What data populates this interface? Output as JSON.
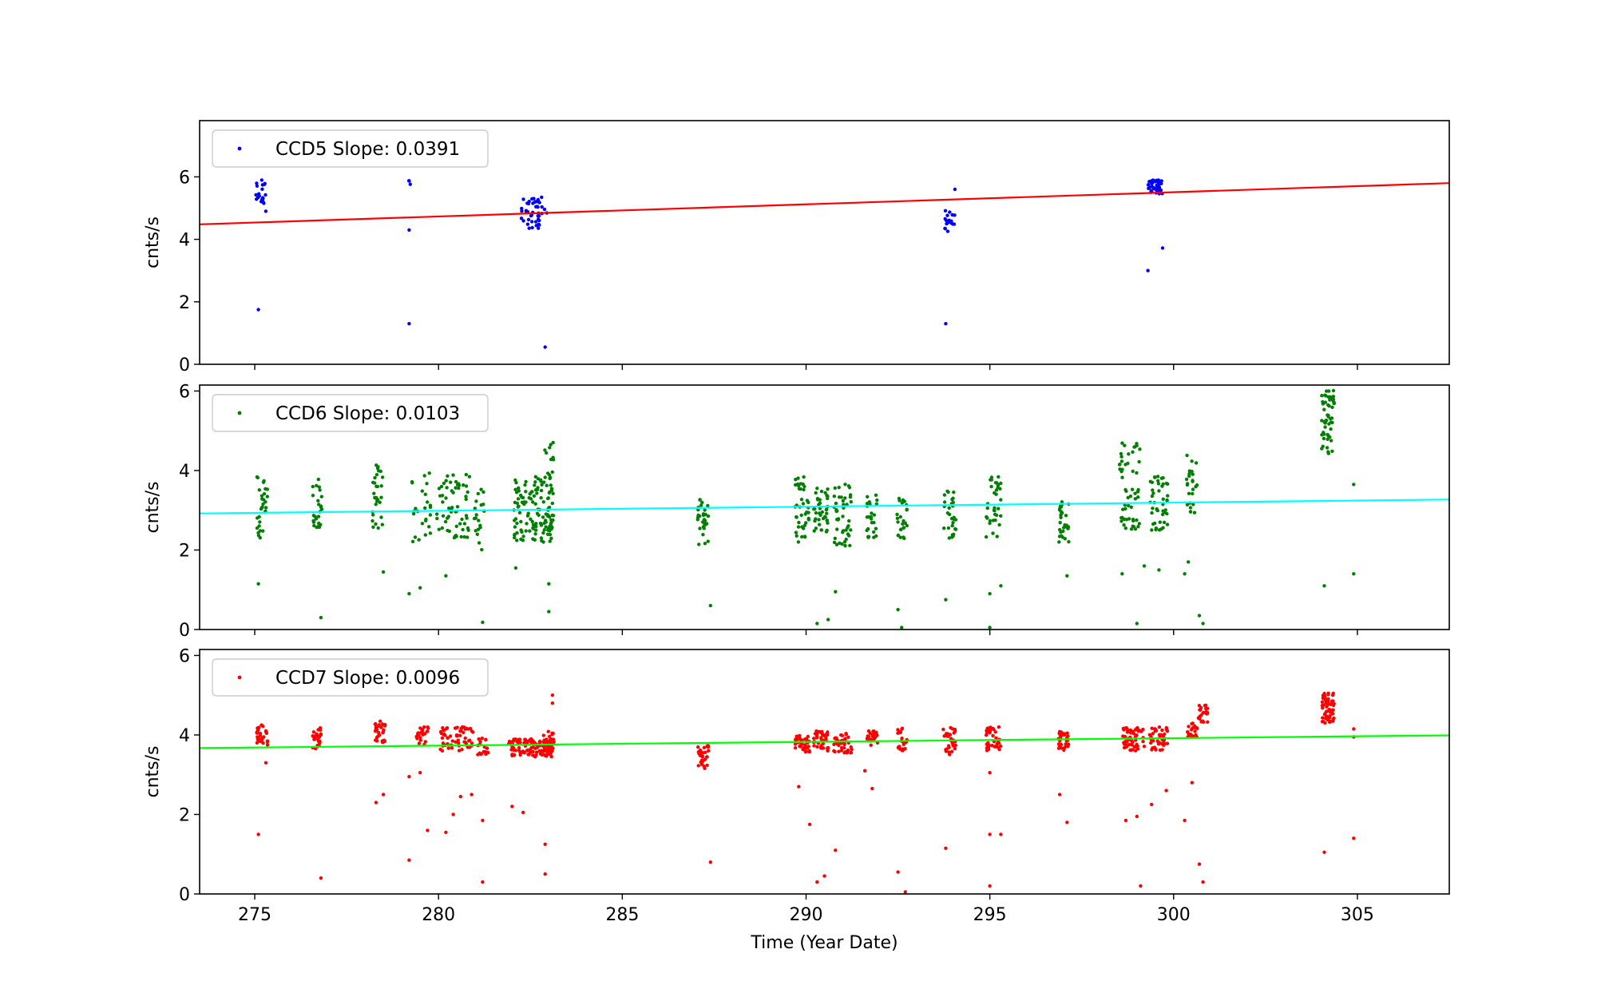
{
  "chart_data": [
    {
      "type": "scatter",
      "ylabel": "cnts/s",
      "ylim": [
        0,
        7.8
      ],
      "yticks": [
        0,
        2,
        4,
        6
      ],
      "xlim": [
        273.5,
        307.5
      ],
      "xticks": [
        275,
        280,
        285,
        290,
        295,
        300,
        305
      ],
      "grid": false,
      "legend_position": "top-left",
      "series": [
        {
          "name": "CCD5 Slope: 0.0391",
          "color": "#0000ff",
          "clusters": [
            {
              "x": 275.15,
              "w": 0.3,
              "n": 20,
              "lo": 5.0,
              "hi": 5.9
            },
            {
              "x": 279.2,
              "w": 0.1,
              "n": 3,
              "lo": 5.7,
              "hi": 5.9
            },
            {
              "x": 282.6,
              "w": 0.7,
              "n": 45,
              "lo": 4.35,
              "hi": 5.35
            },
            {
              "x": 293.9,
              "w": 0.3,
              "n": 18,
              "lo": 4.25,
              "hi": 5.0
            },
            {
              "x": 299.5,
              "w": 0.4,
              "n": 45,
              "lo": 5.45,
              "hi": 5.9
            }
          ],
          "points": [
            [
              275.1,
              1.75
            ],
            [
              279.2,
              4.3
            ],
            [
              279.2,
              1.3
            ],
            [
              282.9,
              0.55
            ],
            [
              294.05,
              5.6
            ],
            [
              293.8,
              1.3
            ],
            [
              299.3,
              3.0
            ],
            [
              299.7,
              3.72
            ],
            [
              275.3,
              4.9
            ]
          ]
        }
      ],
      "fit": {
        "color": "#ff0000",
        "y_at_xmin": 4.48,
        "y_at_xmax": 5.8
      }
    },
    {
      "type": "scatter",
      "ylabel": "cnts/s",
      "ylim": [
        0,
        6.15
      ],
      "yticks": [
        0,
        2,
        4,
        6
      ],
      "xlim": [
        273.5,
        307.5
      ],
      "xticks": [
        275,
        280,
        285,
        290,
        295,
        300,
        305
      ],
      "grid": false,
      "legend_position": "top-left",
      "series": [
        {
          "name": "CCD6 Slope: 0.0103",
          "color": "#008000",
          "clusters": [
            {
              "x": 275.2,
              "w": 0.3,
              "n": 30,
              "lo": 2.3,
              "hi": 3.85
            },
            {
              "x": 276.7,
              "w": 0.25,
              "n": 25,
              "lo": 2.5,
              "hi": 3.8
            },
            {
              "x": 278.35,
              "w": 0.3,
              "n": 30,
              "lo": 2.5,
              "hi": 4.2
            },
            {
              "x": 279.5,
              "w": 0.6,
              "n": 25,
              "lo": 2.2,
              "hi": 4.0
            },
            {
              "x": 280.4,
              "w": 0.9,
              "n": 60,
              "lo": 2.3,
              "hi": 3.9
            },
            {
              "x": 281.1,
              "w": 0.3,
              "n": 20,
              "lo": 1.9,
              "hi": 3.6
            },
            {
              "x": 282.6,
              "w": 1.1,
              "n": 120,
              "lo": 2.2,
              "hi": 3.9
            },
            {
              "x": 283.0,
              "w": 0.25,
              "n": 25,
              "lo": 2.4,
              "hi": 4.8
            },
            {
              "x": 287.2,
              "w": 0.3,
              "n": 30,
              "lo": 2.1,
              "hi": 3.3
            },
            {
              "x": 289.9,
              "w": 0.4,
              "n": 40,
              "lo": 2.2,
              "hi": 3.9
            },
            {
              "x": 290.4,
              "w": 0.4,
              "n": 40,
              "lo": 2.4,
              "hi": 3.6
            },
            {
              "x": 291.0,
              "w": 0.5,
              "n": 45,
              "lo": 2.1,
              "hi": 3.7
            },
            {
              "x": 291.8,
              "w": 0.3,
              "n": 25,
              "lo": 2.3,
              "hi": 3.4
            },
            {
              "x": 292.6,
              "w": 0.3,
              "n": 25,
              "lo": 2.2,
              "hi": 3.3
            },
            {
              "x": 293.9,
              "w": 0.35,
              "n": 30,
              "lo": 2.3,
              "hi": 3.6
            },
            {
              "x": 295.1,
              "w": 0.4,
              "n": 35,
              "lo": 2.3,
              "hi": 4.0
            },
            {
              "x": 297.0,
              "w": 0.3,
              "n": 30,
              "lo": 2.2,
              "hi": 3.3
            },
            {
              "x": 298.8,
              "w": 0.6,
              "n": 55,
              "lo": 2.5,
              "hi": 4.7
            },
            {
              "x": 299.6,
              "w": 0.5,
              "n": 45,
              "lo": 2.5,
              "hi": 3.9
            },
            {
              "x": 300.5,
              "w": 0.3,
              "n": 25,
              "lo": 2.9,
              "hi": 4.4
            },
            {
              "x": 304.2,
              "w": 0.35,
              "n": 55,
              "lo": 4.4,
              "hi": 6.1
            }
          ],
          "points": [
            [
              275.1,
              1.15
            ],
            [
              276.8,
              0.3
            ],
            [
              278.5,
              1.45
            ],
            [
              279.2,
              0.9
            ],
            [
              279.5,
              1.05
            ],
            [
              280.2,
              1.35
            ],
            [
              281.2,
              0.18
            ],
            [
              282.1,
              1.55
            ],
            [
              283.0,
              1.15
            ],
            [
              283.0,
              0.45
            ],
            [
              287.4,
              0.6
            ],
            [
              290.3,
              0.15
            ],
            [
              290.6,
              0.25
            ],
            [
              290.8,
              0.95
            ],
            [
              292.5,
              0.5
            ],
            [
              293.8,
              0.75
            ],
            [
              295.0,
              0.9
            ],
            [
              295.3,
              1.1
            ],
            [
              295.0,
              0.05
            ],
            [
              297.1,
              1.35
            ],
            [
              299.0,
              0.15
            ],
            [
              298.6,
              1.4
            ],
            [
              299.2,
              1.6
            ],
            [
              299.6,
              1.5
            ],
            [
              300.4,
              1.7
            ],
            [
              300.7,
              0.35
            ],
            [
              300.8,
              0.15
            ],
            [
              300.3,
              1.4
            ],
            [
              304.1,
              1.1
            ],
            [
              304.9,
              1.4
            ],
            [
              304.9,
              3.65
            ],
            [
              292.6,
              0.05
            ]
          ]
        }
      ],
      "fit": {
        "color": "#00ffff",
        "y_at_xmin": 2.92,
        "y_at_xmax": 3.27
      }
    },
    {
      "type": "scatter",
      "xlabel": "Time (Year Date)",
      "ylabel": "cnts/s",
      "ylim": [
        0,
        6.15
      ],
      "yticks": [
        0,
        2,
        4,
        6
      ],
      "xlim": [
        273.5,
        307.5
      ],
      "xticks": [
        275,
        280,
        285,
        290,
        295,
        300,
        305
      ],
      "grid": false,
      "legend_position": "top-left",
      "series": [
        {
          "name": "CCD7 Slope: 0.0096",
          "color": "#ff0000",
          "clusters": [
            {
              "x": 275.2,
              "w": 0.3,
              "n": 30,
              "lo": 3.7,
              "hi": 4.25
            },
            {
              "x": 276.7,
              "w": 0.25,
              "n": 25,
              "lo": 3.6,
              "hi": 4.2
            },
            {
              "x": 278.4,
              "w": 0.3,
              "n": 30,
              "lo": 3.8,
              "hi": 4.35
            },
            {
              "x": 279.6,
              "w": 0.4,
              "n": 25,
              "lo": 3.75,
              "hi": 4.2
            },
            {
              "x": 280.5,
              "w": 0.9,
              "n": 60,
              "lo": 3.6,
              "hi": 4.2
            },
            {
              "x": 281.2,
              "w": 0.3,
              "n": 20,
              "lo": 3.5,
              "hi": 4.0
            },
            {
              "x": 282.5,
              "w": 1.2,
              "n": 120,
              "lo": 3.45,
              "hi": 3.9
            },
            {
              "x": 283.0,
              "w": 0.3,
              "n": 25,
              "lo": 3.5,
              "hi": 4.1
            },
            {
              "x": 287.2,
              "w": 0.3,
              "n": 30,
              "lo": 3.15,
              "hi": 3.75
            },
            {
              "x": 289.9,
              "w": 0.4,
              "n": 40,
              "lo": 3.55,
              "hi": 4.0
            },
            {
              "x": 290.4,
              "w": 0.4,
              "n": 40,
              "lo": 3.6,
              "hi": 4.1
            },
            {
              "x": 291.0,
              "w": 0.5,
              "n": 45,
              "lo": 3.55,
              "hi": 4.05
            },
            {
              "x": 291.8,
              "w": 0.3,
              "n": 25,
              "lo": 3.7,
              "hi": 4.1
            },
            {
              "x": 292.6,
              "w": 0.3,
              "n": 25,
              "lo": 3.6,
              "hi": 4.2
            },
            {
              "x": 293.9,
              "w": 0.35,
              "n": 30,
              "lo": 3.5,
              "hi": 4.2
            },
            {
              "x": 295.1,
              "w": 0.4,
              "n": 35,
              "lo": 3.6,
              "hi": 4.2
            },
            {
              "x": 297.0,
              "w": 0.3,
              "n": 30,
              "lo": 3.6,
              "hi": 4.1
            },
            {
              "x": 298.9,
              "w": 0.6,
              "n": 55,
              "lo": 3.6,
              "hi": 4.2
            },
            {
              "x": 299.6,
              "w": 0.5,
              "n": 45,
              "lo": 3.6,
              "hi": 4.2
            },
            {
              "x": 300.5,
              "w": 0.3,
              "n": 25,
              "lo": 3.9,
              "hi": 4.3
            },
            {
              "x": 300.8,
              "w": 0.25,
              "n": 25,
              "lo": 4.3,
              "hi": 4.75
            },
            {
              "x": 304.2,
              "w": 0.35,
              "n": 55,
              "lo": 4.3,
              "hi": 5.05
            }
          ],
          "points": [
            [
              275.1,
              1.5
            ],
            [
              275.3,
              3.3
            ],
            [
              276.8,
              0.4
            ],
            [
              278.3,
              2.3
            ],
            [
              278.5,
              2.5
            ],
            [
              279.2,
              0.85
            ],
            [
              279.2,
              2.95
            ],
            [
              279.5,
              3.05
            ],
            [
              279.7,
              1.6
            ],
            [
              280.2,
              1.55
            ],
            [
              280.4,
              2.0
            ],
            [
              280.6,
              2.45
            ],
            [
              280.9,
              2.5
            ],
            [
              281.2,
              1.85
            ],
            [
              281.2,
              0.3
            ],
            [
              282.0,
              2.2
            ],
            [
              282.3,
              2.05
            ],
            [
              282.9,
              1.25
            ],
            [
              282.9,
              0.5
            ],
            [
              283.1,
              5.0
            ],
            [
              283.1,
              4.8
            ],
            [
              287.4,
              0.8
            ],
            [
              289.8,
              2.7
            ],
            [
              290.1,
              1.75
            ],
            [
              290.3,
              0.3
            ],
            [
              290.5,
              0.45
            ],
            [
              290.8,
              1.1
            ],
            [
              291.6,
              3.1
            ],
            [
              291.8,
              2.65
            ],
            [
              292.5,
              0.55
            ],
            [
              292.7,
              0.05
            ],
            [
              293.8,
              1.15
            ],
            [
              295.0,
              3.05
            ],
            [
              295.0,
              1.5
            ],
            [
              295.3,
              1.5
            ],
            [
              295.0,
              0.2
            ],
            [
              296.9,
              2.5
            ],
            [
              297.1,
              1.8
            ],
            [
              298.7,
              1.85
            ],
            [
              299.0,
              1.95
            ],
            [
              299.1,
              0.2
            ],
            [
              299.4,
              2.25
            ],
            [
              299.8,
              2.6
            ],
            [
              300.3,
              1.85
            ],
            [
              300.5,
              2.8
            ],
            [
              300.7,
              0.75
            ],
            [
              300.8,
              0.3
            ],
            [
              304.1,
              1.05
            ],
            [
              304.9,
              1.4
            ],
            [
              304.9,
              4.15
            ],
            [
              304.9,
              3.95
            ]
          ]
        }
      ],
      "fit": {
        "color": "#00ff00",
        "y_at_xmin": 3.67,
        "y_at_xmax": 3.99
      }
    }
  ]
}
